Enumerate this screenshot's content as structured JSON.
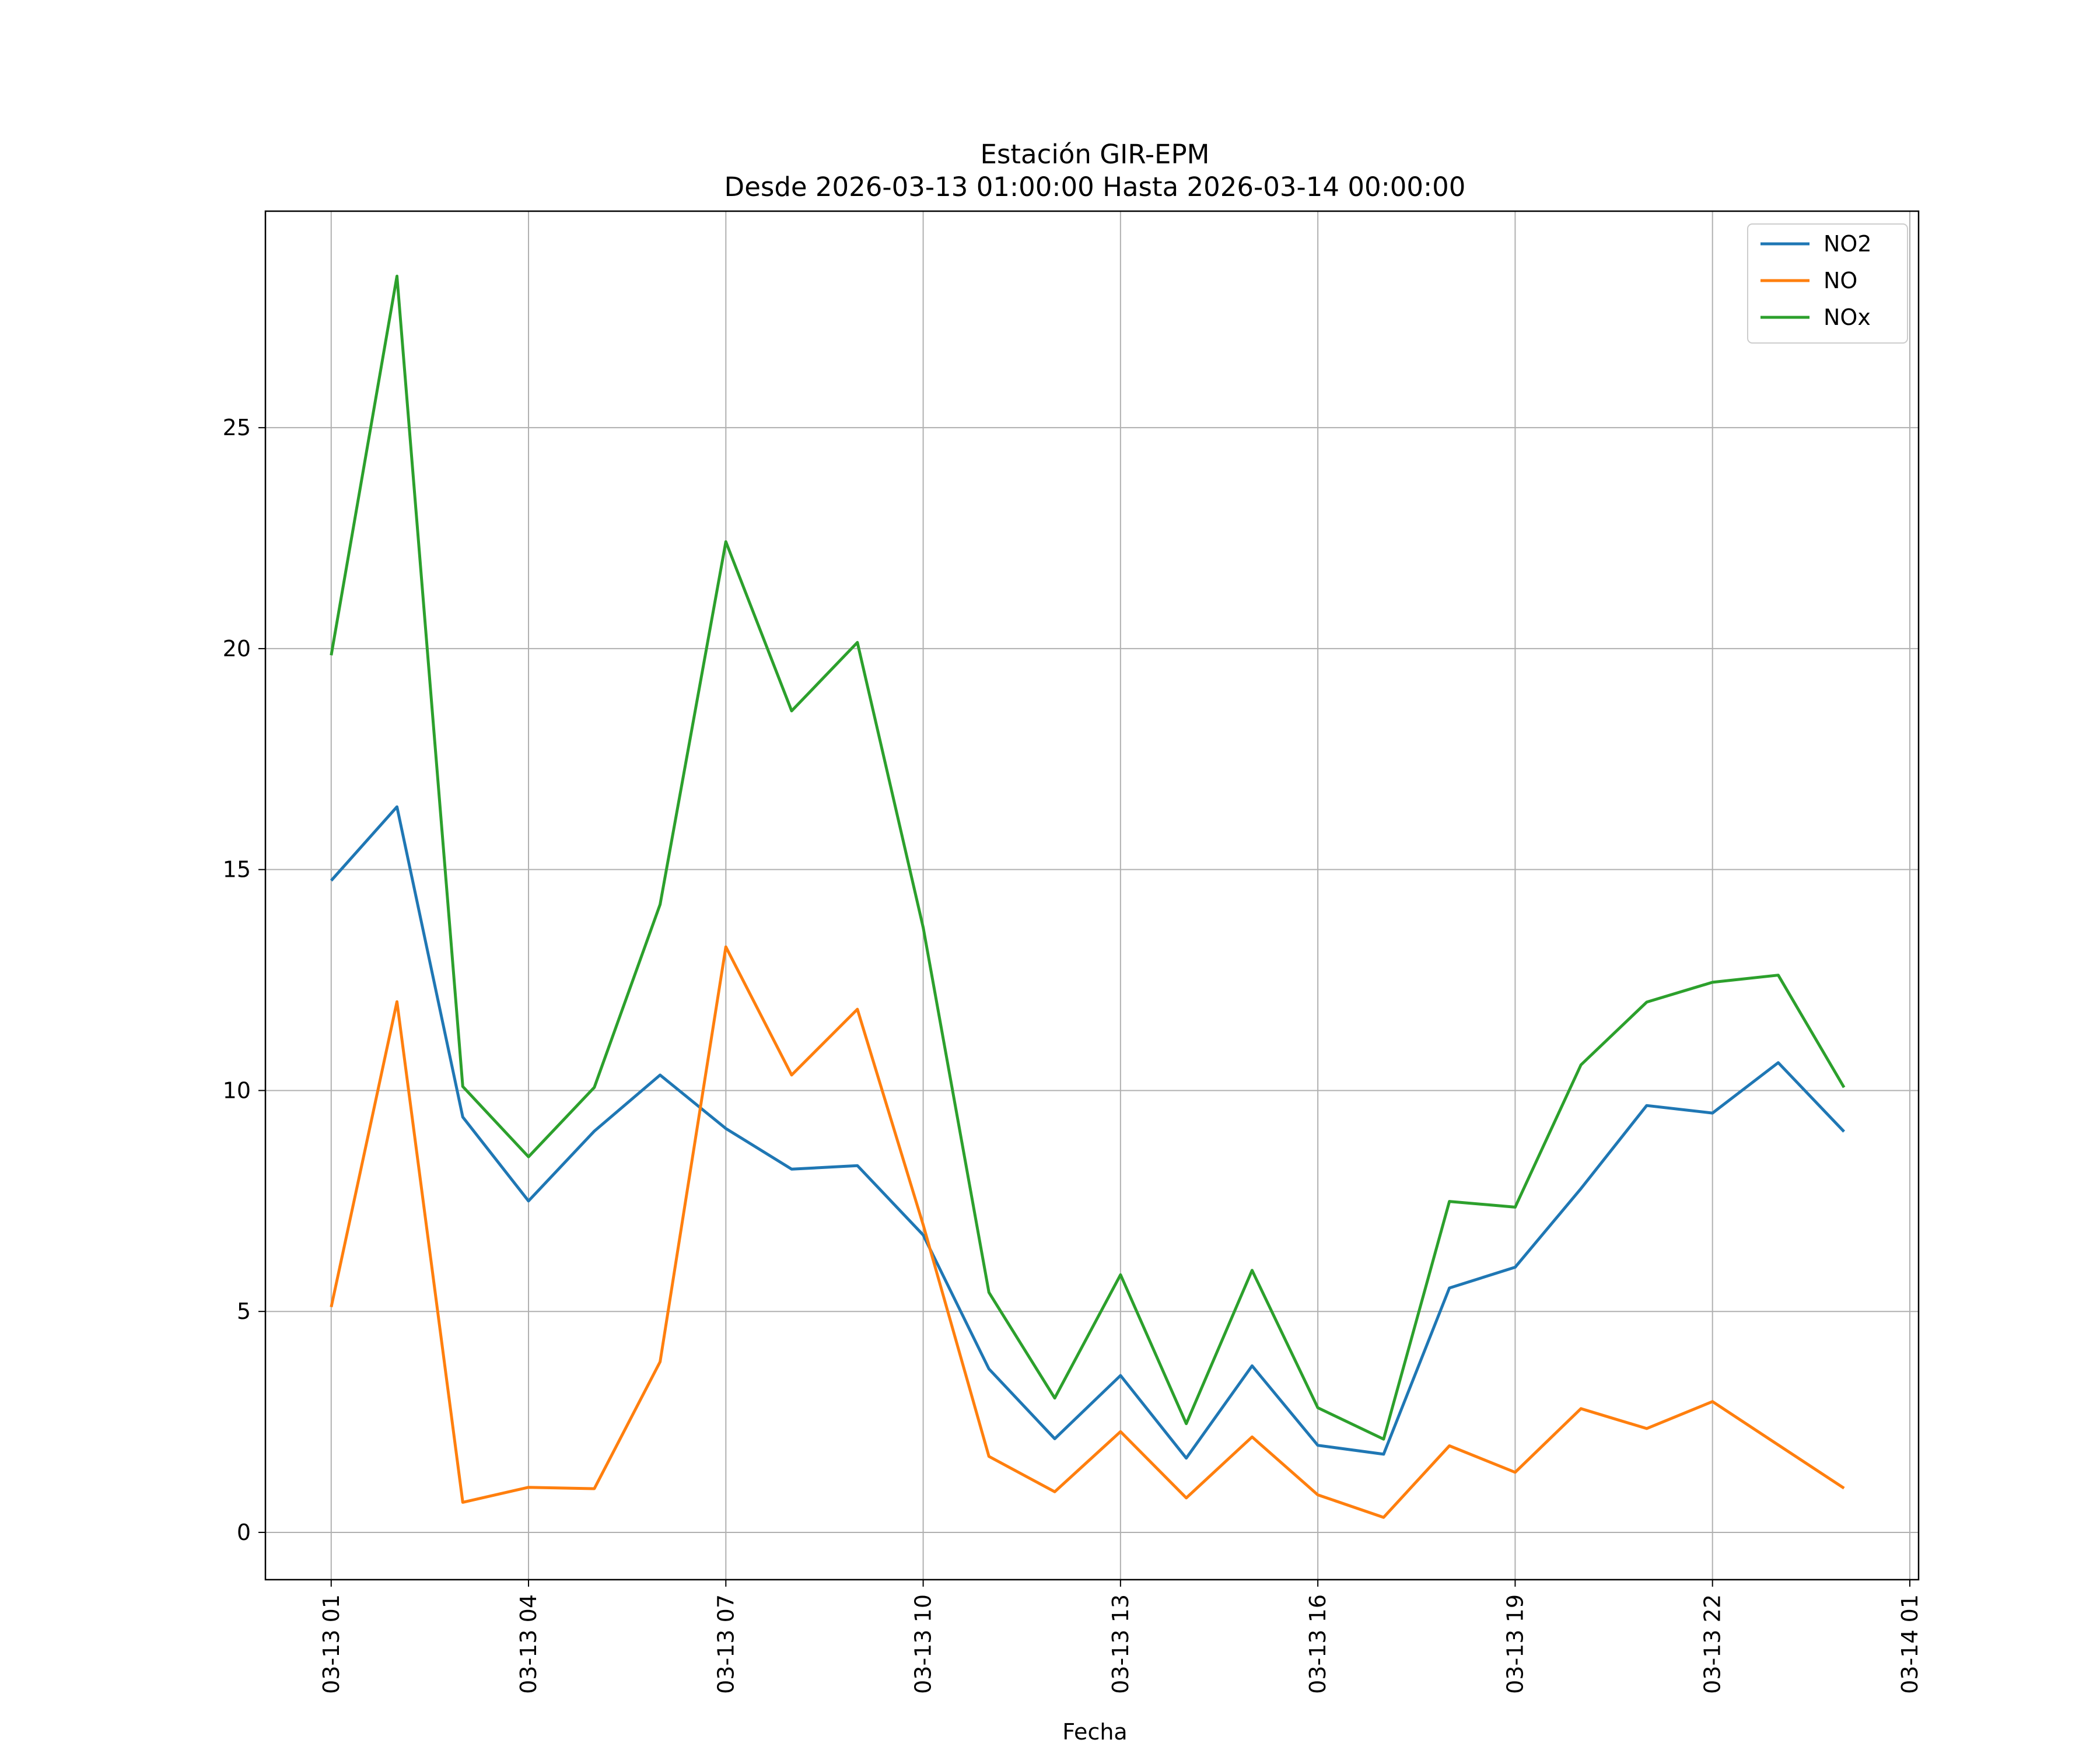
{
  "chart_data": {
    "type": "line",
    "title": "Estación GIR-EPM",
    "subtitle": "Desde 2026-03-13 01:00:00 Hasta 2026-03-14 00:00:00",
    "xlabel": "Fecha",
    "ylabel": "",
    "x": [
      "2026-03-13 01:00",
      "2026-03-13 02:00",
      "2026-03-13 03:00",
      "2026-03-13 04:00",
      "2026-03-13 05:00",
      "2026-03-13 06:00",
      "2026-03-13 07:00",
      "2026-03-13 08:00",
      "2026-03-13 09:00",
      "2026-03-13 10:00",
      "2026-03-13 11:00",
      "2026-03-13 12:00",
      "2026-03-13 13:00",
      "2026-03-13 14:00",
      "2026-03-13 15:00",
      "2026-03-13 16:00",
      "2026-03-13 17:00",
      "2026-03-13 18:00",
      "2026-03-13 19:00",
      "2026-03-13 20:00",
      "2026-03-13 21:00",
      "2026-03-13 22:00",
      "2026-03-13 23:00",
      "2026-03-14 00:00"
    ],
    "xlim": [
      "2026-03-13 00:00",
      "2026-03-14 01:08"
    ],
    "xticks": [
      {
        "x": "2026-03-13 01:00",
        "label": "03-13 01"
      },
      {
        "x": "2026-03-13 04:00",
        "label": "03-13 04"
      },
      {
        "x": "2026-03-13 07:00",
        "label": "03-13 07"
      },
      {
        "x": "2026-03-13 10:00",
        "label": "03-13 10"
      },
      {
        "x": "2026-03-13 13:00",
        "label": "03-13 13"
      },
      {
        "x": "2026-03-13 16:00",
        "label": "03-13 16"
      },
      {
        "x": "2026-03-13 19:00",
        "label": "03-13 19"
      },
      {
        "x": "2026-03-13 22:00",
        "label": "03-13 22"
      },
      {
        "x": "2026-03-14 01:00",
        "label": "03-14 01"
      }
    ],
    "ylim": [
      -1.07,
      29.9
    ],
    "yticks": [
      0,
      5,
      10,
      15,
      20,
      25
    ],
    "grid": true,
    "legend": "top-right",
    "series": [
      {
        "name": "NO2",
        "color": "#1f77b4",
        "values": [
          14.75,
          16.42,
          9.4,
          7.5,
          9.08,
          10.35,
          9.14,
          8.22,
          8.3,
          6.73,
          3.7,
          2.12,
          3.55,
          1.68,
          3.77,
          1.97,
          1.77,
          5.53,
          6.0,
          7.78,
          9.66,
          9.49,
          10.63,
          9.07
        ]
      },
      {
        "name": "NO",
        "color": "#ff7f0e",
        "values": [
          5.1,
          12.01,
          0.68,
          1.02,
          0.99,
          3.86,
          13.25,
          10.35,
          11.84,
          6.96,
          1.72,
          0.92,
          2.28,
          0.78,
          2.16,
          0.85,
          0.34,
          1.96,
          1.36,
          2.8,
          2.35,
          2.96,
          1.98,
          1.0
        ]
      },
      {
        "name": "NOx",
        "color": "#2ca02c",
        "values": [
          19.85,
          28.43,
          10.09,
          8.5,
          10.07,
          14.21,
          22.42,
          18.59,
          20.14,
          13.69,
          5.43,
          3.04,
          5.83,
          2.46,
          5.93,
          2.82,
          2.11,
          7.49,
          7.36,
          10.58,
          12.0,
          12.45,
          12.61,
          10.07
        ]
      }
    ]
  }
}
